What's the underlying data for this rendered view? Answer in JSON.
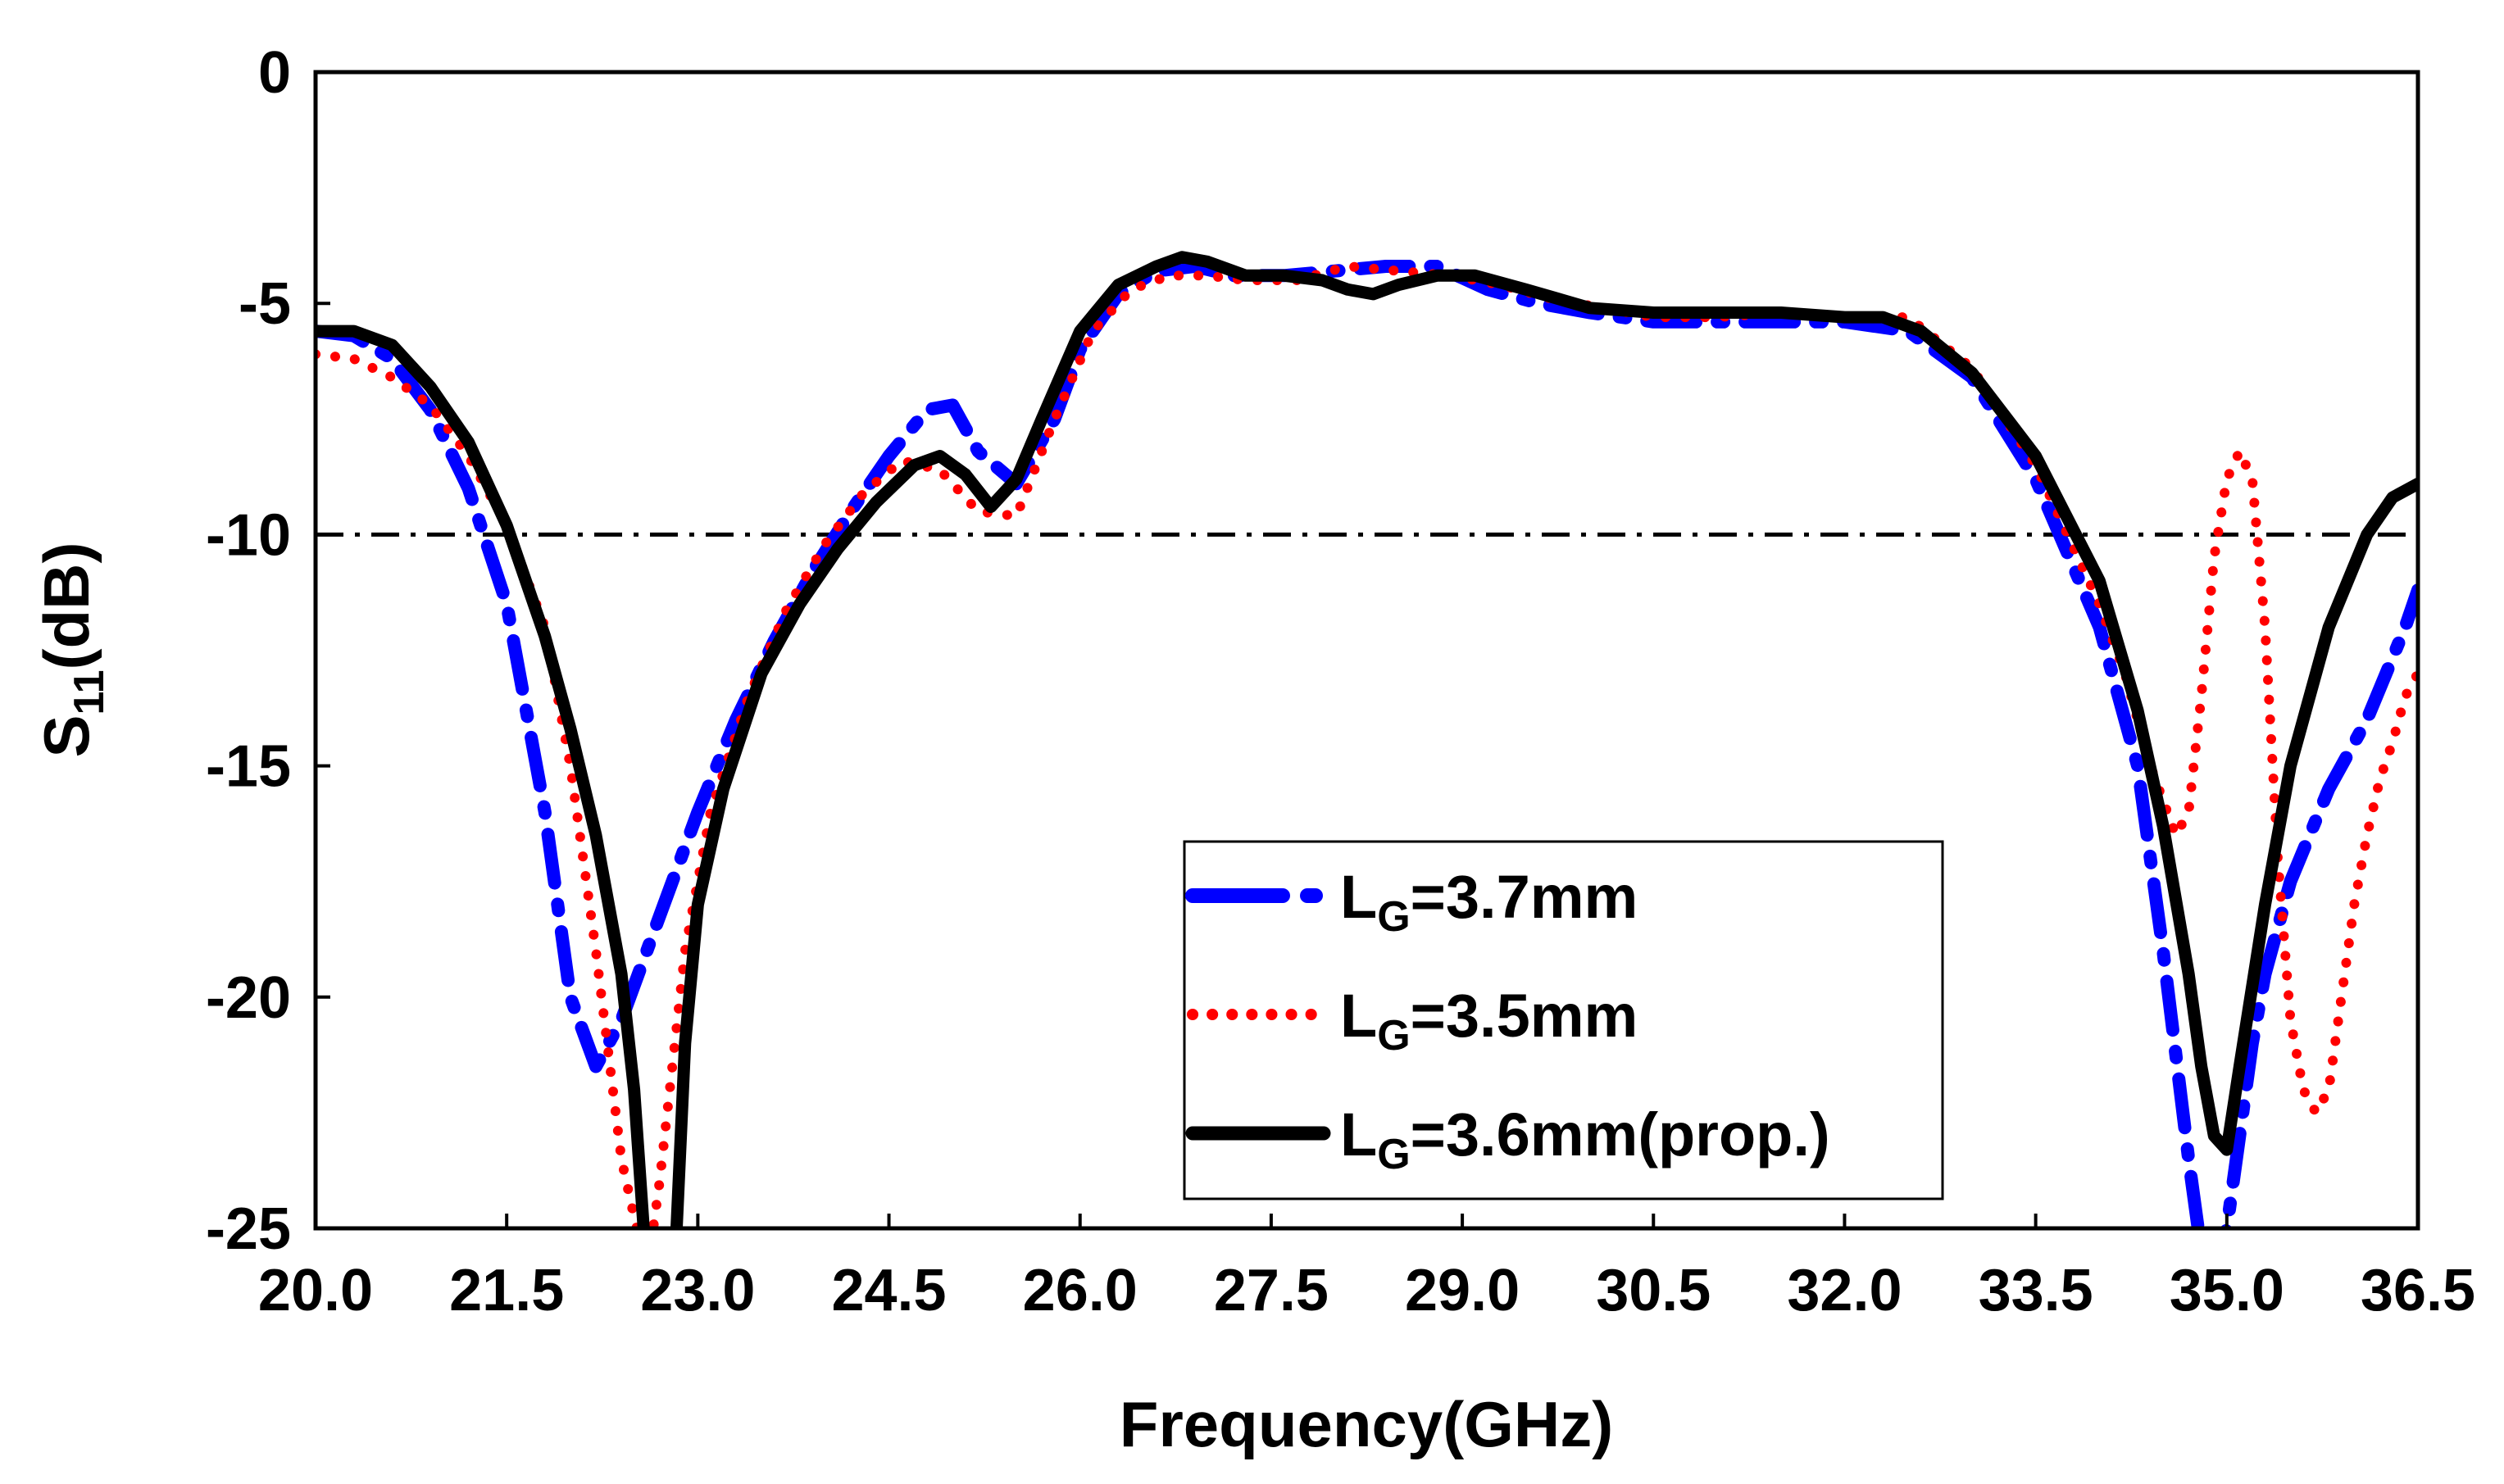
{
  "chart_data": {
    "type": "line",
    "xlabel": "Frequency(GHz)",
    "ylabel_main": "S",
    "ylabel_sub": "11",
    "ylabel_tail": "(dB)",
    "xlim": [
      20.0,
      36.5
    ],
    "ylim": [
      -25,
      0
    ],
    "xticks": [
      "20.0",
      "21.5",
      "23.0",
      "24.5",
      "26.0",
      "27.5",
      "29.0",
      "30.5",
      "32.0",
      "33.5",
      "35.0",
      "36.5"
    ],
    "yticks": [
      "0",
      "-5",
      "-10",
      "-15",
      "-20",
      "-25"
    ],
    "reference_line": {
      "y": -10,
      "style": "dash-dot",
      "color": "#000000"
    },
    "legend_position": "bottom-center",
    "series": [
      {
        "name_main": "L",
        "name_sub": "G",
        "name_tail": "=3.7mm",
        "color": "#0000ff",
        "style": "dash-dot",
        "x": [
          20.0,
          20.3,
          20.6,
          20.9,
          21.2,
          21.5,
          21.8,
          22.0,
          22.2,
          22.4,
          22.6,
          22.8,
          23.0,
          23.3,
          23.6,
          23.9,
          24.2,
          24.5,
          24.8,
          25.0,
          25.2,
          25.5,
          25.8,
          26.0,
          26.3,
          26.6,
          26.9,
          27.2,
          27.6,
          28.0,
          28.4,
          28.8,
          29.2,
          29.6,
          30.0,
          30.5,
          31.0,
          31.5,
          32.0,
          32.5,
          33.0,
          33.5,
          34.0,
          34.3,
          34.5,
          34.7,
          34.8,
          34.9,
          35.0,
          35.1,
          35.2,
          35.3,
          35.5,
          35.8,
          36.1,
          36.4,
          36.5
        ],
        "y": [
          -5.6,
          -5.7,
          -6.2,
          -7.3,
          -9.0,
          -11.5,
          -16.0,
          -20.0,
          -21.5,
          -20.5,
          -19.0,
          -17.5,
          -16.0,
          -14.0,
          -12.3,
          -10.8,
          -9.5,
          -8.3,
          -7.3,
          -7.2,
          -8.2,
          -8.9,
          -7.5,
          -6.0,
          -4.8,
          -4.3,
          -4.2,
          -4.4,
          -4.4,
          -4.3,
          -4.2,
          -4.2,
          -4.7,
          -5.0,
          -5.2,
          -5.4,
          -5.4,
          -5.4,
          -5.4,
          -5.6,
          -6.6,
          -8.8,
          -12.0,
          -15.0,
          -19.0,
          -23.5,
          -25.5,
          -26.0,
          -25.0,
          -23.0,
          -21.0,
          -19.5,
          -17.5,
          -15.5,
          -14.0,
          -12.0,
          -11.2
        ]
      },
      {
        "name_main": "L",
        "name_sub": "G",
        "name_tail": "=3.5mm",
        "color": "#ff0000",
        "style": "dotted",
        "x": [
          20.0,
          20.3,
          20.6,
          20.9,
          21.2,
          21.5,
          21.8,
          22.0,
          22.2,
          22.4,
          22.6,
          22.7,
          22.9,
          23.1,
          23.4,
          23.7,
          24.0,
          24.3,
          24.6,
          24.9,
          25.2,
          25.5,
          25.8,
          26.1,
          26.4,
          26.7,
          27.0,
          27.3,
          27.7,
          28.1,
          28.5,
          28.9,
          29.3,
          29.7,
          30.1,
          30.5,
          31.0,
          31.5,
          32.0,
          32.5,
          33.0,
          33.5,
          34.0,
          34.2,
          34.4,
          34.6,
          34.7,
          34.8,
          34.9,
          35.0,
          35.1,
          35.2,
          35.3,
          35.4,
          35.5,
          35.6,
          35.7,
          35.8,
          35.9,
          36.0,
          36.1,
          36.2,
          36.3,
          36.4,
          36.5
        ],
        "y": [
          -6.1,
          -6.2,
          -6.6,
          -7.2,
          -8.3,
          -9.8,
          -12.0,
          -15.0,
          -19.0,
          -23.5,
          -26.0,
          -24.0,
          -19.0,
          -16.0,
          -13.5,
          -11.6,
          -10.2,
          -9.1,
          -8.4,
          -8.6,
          -9.5,
          -9.6,
          -7.5,
          -5.6,
          -4.7,
          -4.4,
          -4.4,
          -4.5,
          -4.5,
          -4.2,
          -4.3,
          -4.4,
          -4.6,
          -4.9,
          -5.1,
          -5.3,
          -5.3,
          -5.2,
          -5.3,
          -5.3,
          -6.4,
          -8.5,
          -11.5,
          -13.0,
          -15.0,
          -16.5,
          -16.0,
          -13.5,
          -10.5,
          -8.8,
          -8.2,
          -8.8,
          -12.0,
          -17.0,
          -20.5,
          -22.0,
          -22.5,
          -22.0,
          -20.0,
          -18.0,
          -16.5,
          -15.3,
          -14.5,
          -13.5,
          -13.0
        ]
      },
      {
        "name_main": "L",
        "name_sub": "G",
        "name_tail": "=3.6mm(prop.)",
        "color": "#000000",
        "style": "solid",
        "x": [
          20.0,
          20.3,
          20.6,
          20.9,
          21.2,
          21.5,
          21.8,
          22.0,
          22.2,
          22.4,
          22.5,
          22.6,
          22.7,
          22.8,
          22.9,
          23.0,
          23.2,
          23.5,
          23.8,
          24.1,
          24.4,
          24.7,
          24.9,
          25.1,
          25.3,
          25.5,
          25.7,
          26.0,
          26.3,
          26.6,
          26.8,
          27.0,
          27.3,
          27.6,
          27.9,
          28.1,
          28.3,
          28.5,
          28.8,
          29.1,
          29.5,
          30.0,
          30.5,
          31.0,
          31.5,
          32.0,
          32.3,
          32.6,
          33.0,
          33.5,
          34.0,
          34.3,
          34.5,
          34.7,
          34.8,
          34.9,
          35.0,
          35.1,
          35.3,
          35.5,
          35.8,
          36.1,
          36.3,
          36.5
        ],
        "y": [
          -5.6,
          -5.6,
          -5.9,
          -6.8,
          -8.0,
          -9.8,
          -12.2,
          -14.2,
          -16.5,
          -19.5,
          -22.0,
          -26.0,
          -29.0,
          -27.0,
          -21.0,
          -18.0,
          -15.5,
          -13.0,
          -11.5,
          -10.3,
          -9.3,
          -8.5,
          -8.3,
          -8.7,
          -9.4,
          -8.8,
          -7.5,
          -5.6,
          -4.6,
          -4.2,
          -4.0,
          -4.1,
          -4.4,
          -4.4,
          -4.5,
          -4.7,
          -4.8,
          -4.6,
          -4.4,
          -4.4,
          -4.7,
          -5.1,
          -5.2,
          -5.2,
          -5.2,
          -5.3,
          -5.3,
          -5.6,
          -6.5,
          -8.3,
          -11.0,
          -13.8,
          -16.3,
          -19.5,
          -21.5,
          -23.0,
          -23.3,
          -21.5,
          -18.0,
          -15.0,
          -12.0,
          -10.0,
          -9.2,
          -8.9
        ]
      }
    ]
  }
}
